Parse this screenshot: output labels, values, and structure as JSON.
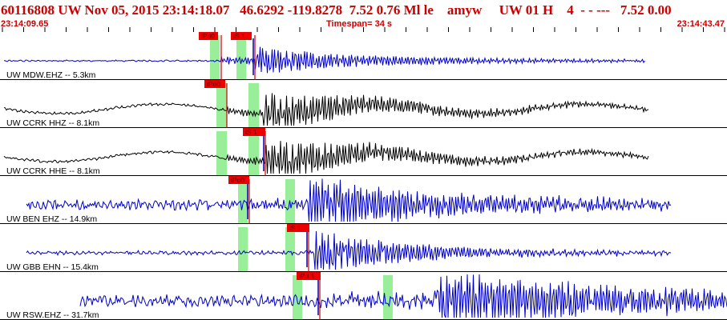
{
  "header": {
    "title": "60116808 UW Nov 05, 2015 23:14:18.07   46.6292 -119.8278  7.52 0.76 Ml le    amyw     UW 01 H    4  - - ---   7.52 0.00",
    "start_time": "23:14:09.65",
    "timespan": "Timespan=  34 s",
    "end_time": "23:14:43.47"
  },
  "colors": {
    "header_text": "#cc0000",
    "trace_blue": "#0000cc",
    "trace_black": "#000000",
    "pick_window": "#99ee99",
    "pick_flag": "#ee0000",
    "pick_line": "#cc0000"
  },
  "traces": [
    {
      "label": "UW MDW.EHZ -- 5.3km",
      "color": "#0000cc",
      "picks": [
        {
          "text": "iPd0",
          "kind": "P"
        },
        {
          "text": "iS 1",
          "kind": "S"
        }
      ]
    },
    {
      "label": "UW CCRK HHZ -- 8.1km",
      "color": "#000000",
      "picks": [
        {
          "text": "iPd0",
          "kind": "P"
        }
      ]
    },
    {
      "label": "UW CCRK HHE -- 8.1km",
      "color": "#000000",
      "picks": [
        {
          "text": "iS 1",
          "kind": "S"
        }
      ]
    },
    {
      "label": "UW BEN EHZ -- 14.9km",
      "color": "#0000cc",
      "picks": [
        {
          "text": "iPd0",
          "kind": "P"
        }
      ]
    },
    {
      "label": "UW GBB EHN -- 15.4km",
      "color": "#0000cc",
      "picks": [
        {
          "text": "iS 1",
          "kind": "S"
        }
      ]
    },
    {
      "label": "UW RSW.EHZ -- 31.7km",
      "color": "#0000cc",
      "picks": [
        {
          "text": "iPd 1",
          "kind": "P"
        }
      ]
    }
  ]
}
